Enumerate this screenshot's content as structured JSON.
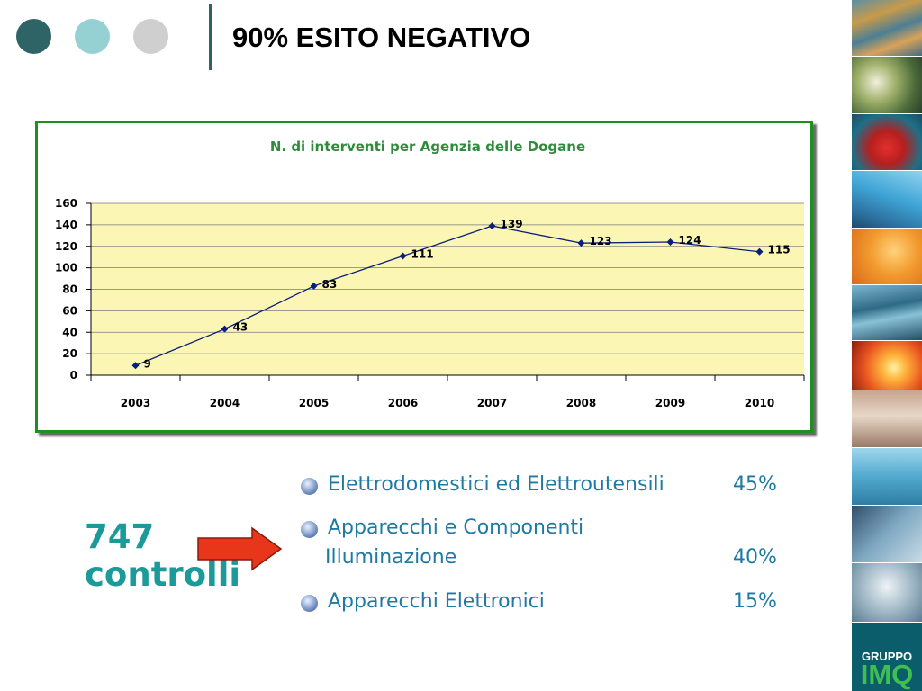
{
  "header": {
    "title": "90% ESITO NEGATIVO"
  },
  "brand": {
    "line1": "GRUPPO",
    "line2": "IMQ"
  },
  "colors": {
    "accent": "#2f6466",
    "teal_light": "#95d0d2",
    "grey": "#cfcfcf",
    "chart_border": "#1f8f1f",
    "chart_title": "#2e8b3b",
    "plot_bg": "#fbf6b4",
    "series": "#0b1f7a",
    "text_blue": "#1e7aa3",
    "total_teal": "#1a9a98",
    "arrow": "#e8361a"
  },
  "chart_data": {
    "type": "line",
    "title": "N. di interventi per Agenzia delle Dogane",
    "categories": [
      "2003",
      "2004",
      "2005",
      "2006",
      "2007",
      "2008",
      "2009",
      "2010"
    ],
    "series": [
      {
        "values": [
          9,
          43,
          83,
          111,
          139,
          123,
          124,
          115
        ]
      }
    ],
    "ylim": [
      0,
      160
    ],
    "yticks": [
      "160",
      "140",
      "120",
      "100",
      "80",
      "60",
      "40",
      "20",
      "0"
    ],
    "grid": true,
    "legend": "none"
  },
  "summary": {
    "total_line1": "747",
    "total_line2": "controlli"
  },
  "categories": [
    {
      "label": "Elettrodomestici ed Elettroutensili",
      "percent": "45%"
    },
    {
      "label": "Apparecchi e Componenti",
      "label2": "Illuminazione",
      "percent": "40%"
    },
    {
      "label": "Apparecchi Elettronici",
      "percent": "15%"
    }
  ]
}
